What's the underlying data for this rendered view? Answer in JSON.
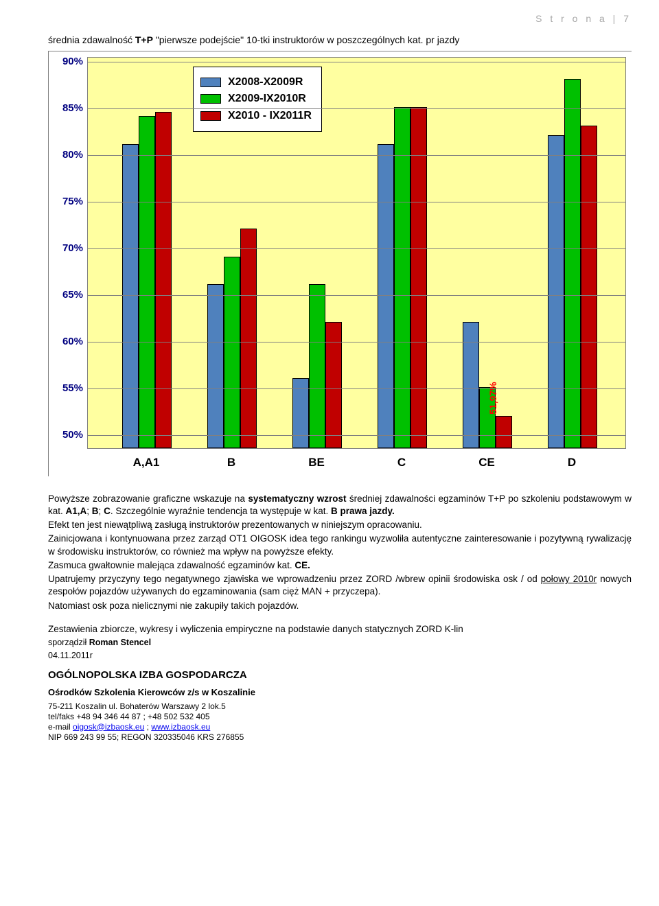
{
  "pageHeader": "S t r o n a  | 7",
  "chartTitle": {
    "prefix": "średnia zdawalność ",
    "tp": "T+P",
    "suffix": " \"pierwsze podejście\" 10-tki instruktorów w poszczególnych kat. pr jazdy"
  },
  "chart": {
    "type": "bar",
    "bgColor": "#ffffa0",
    "gridColor": "#808080",
    "yAxis": {
      "ticks": [
        50,
        55,
        60,
        65,
        70,
        75,
        80,
        85,
        90
      ],
      "labels": [
        "50%",
        "55%",
        "60%",
        "65%",
        "70%",
        "75%",
        "80%",
        "85%",
        "90%"
      ],
      "tickColor": "#000080",
      "min": 48.5,
      "max": 90.5
    },
    "series": [
      {
        "name": "X2008-X2009R",
        "color": "#4f81bd"
      },
      {
        "name": "X2009-IX2010R",
        "color": "#00c000"
      },
      {
        "name": "X2010 - IX2011R",
        "color": "#c00000"
      }
    ],
    "categories": [
      "A,A1",
      "B",
      "BE",
      "C",
      "CE",
      "D"
    ],
    "data": {
      "A,A1": [
        81,
        84,
        84.5
      ],
      "B": [
        66,
        69,
        72
      ],
      "BE": [
        56,
        66,
        62
      ],
      "C": [
        81,
        85,
        85
      ],
      "CE": [
        62,
        55,
        51.97
      ],
      "D": [
        82,
        88,
        83
      ]
    },
    "barWidth": 24,
    "groupGap": 52,
    "firstOffset": 50,
    "annotations": [
      {
        "text": "51,97%",
        "category": "CE",
        "seriesIdx": 2
      }
    ]
  },
  "body": {
    "p1a": "Powyższe zobrazowanie graficzne wskazuje na ",
    "p1b": "systematyczny wzrost",
    "p1c": " średniej zdawalności egzaminów T+P po szkoleniu podstawowym w kat. ",
    "p1d": "A1,A",
    "p1e": "; ",
    "p1f": "B",
    "p1g": "; ",
    "p1h": "C",
    "p1i": ". Szczególnie wyraźnie tendencja ta występuje w kat. ",
    "p1j": "B prawa jazdy.",
    "p2": "Efekt ten jest niewątpliwą zasługą instruktorów prezentowanych w niniejszym opracowaniu.",
    "p3": "Zainicjowana i kontynuowana przez zarząd OT1 OIGOSK idea tego rankingu wyzwoliła autentyczne zainteresowanie i pozytywną rywalizację w środowisku instruktorów, co również ma wpływ na powyższe efekty.",
    "p4a": "Zasmuca gwałtownie malejąca zdawalność egzaminów kat. ",
    "p4b": "CE.",
    "p5a": "Upatrujemy przyczyny tego negatywnego zjawiska we wprowadzeniu przez ZORD /wbrew opinii środowiska osk / od ",
    "p5u": "połowy 2010r",
    "p5b": " nowych zespołów pojazdów używanych do egzaminowania (sam cięż MAN + przyczepa).",
    "p6": "Natomiast osk poza nielicznymi nie zakupiły takich pojazdów.",
    "p7": "Zestawienia zbiorcze, wykresy i wyliczenia empiryczne na podstawie danych statycznych ZORD K-lin",
    "p8a": "sporządził ",
    "p8b": "Roman Stencel",
    "p9": "04.11.2011r"
  },
  "footer": {
    "h1": "OGÓLNOPOLSKA IZBA GOSPODARCZA",
    "h2": "Ośrodków Szkolenia Kierowców z/s w Koszalinie",
    "addr": "75-211 Koszalin ul. Bohaterów Warszawy 2 lok.5",
    "tel": "tel/faks +48 94 346 44 87 ; +48 502 532 405",
    "emailPre": "e-mail ",
    "email1": "oigosk@izbaosk.eu",
    "emailSep": " ; ",
    "email2": "www.izbaosk.eu",
    "nip": "NIP 669 243 99 55; REGON 320335046 KRS 276855"
  }
}
